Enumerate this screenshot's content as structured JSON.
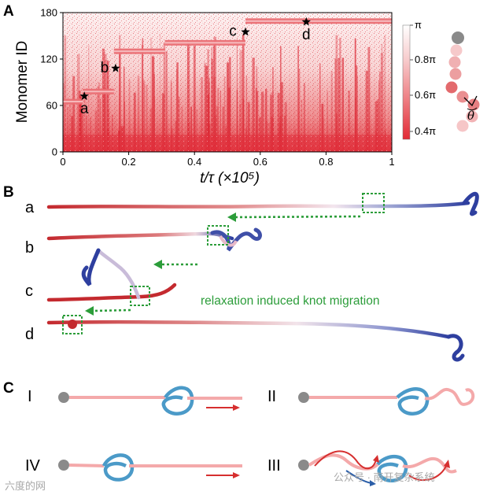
{
  "panel_labels": {
    "a": "A",
    "b": "B",
    "c": "C"
  },
  "chart_data": {
    "type": "heatmap",
    "title": "",
    "xlabel": "t/τ  (×10⁵)",
    "ylabel": "Monomer ID",
    "xlim": [
      0,
      1
    ],
    "ylim": [
      0,
      180
    ],
    "xticks": [
      "0",
      "0.2",
      "0.4",
      "0.6",
      "0.8",
      "1"
    ],
    "yticks": [
      "0",
      "60",
      "120",
      "180"
    ],
    "colorbar": {
      "min_label": "0.4π",
      "ticks": [
        "π",
        "0.8π",
        "0.6π",
        "0.4π"
      ],
      "symbol": "θ"
    },
    "knot_steps": [
      {
        "x_start": 0.0,
        "x_end": 0.06,
        "y": 65
      },
      {
        "x_start": 0.06,
        "x_end": 0.155,
        "y": 78
      },
      {
        "x_start": 0.155,
        "x_end": 0.31,
        "y": 130
      },
      {
        "x_start": 0.31,
        "x_end": 0.555,
        "y": 141
      },
      {
        "x_start": 0.555,
        "x_end": 1.0,
        "y": 169
      }
    ],
    "markers": [
      {
        "label": "a",
        "x": 0.065,
        "y": 72
      },
      {
        "label": "b",
        "x": 0.16,
        "y": 108
      },
      {
        "label": "c",
        "x": 0.555,
        "y": 155
      },
      {
        "label": "d",
        "x": 0.74,
        "y": 168
      }
    ]
  },
  "panel_b": {
    "rows": [
      "a",
      "b",
      "c",
      "d"
    ],
    "annotation": "relaxation induced knot migration"
  },
  "panel_c": {
    "labels": [
      "I",
      "II",
      "IV",
      "III"
    ]
  },
  "watermarks": {
    "left": "六度的网",
    "right": "公众号 · 南开复杂系统"
  }
}
